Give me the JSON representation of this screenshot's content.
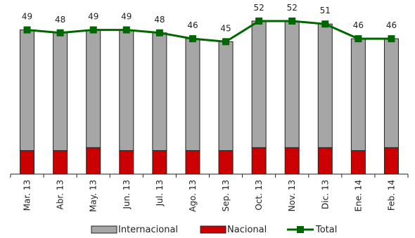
{
  "chart_data": {
    "type": "bar",
    "stacked": true,
    "categories": [
      "Mar. 13",
      "Abr. 13",
      "May. 13",
      "Jun. 13",
      "Jul. 13",
      "Ago. 13",
      "Sep. 13",
      "Oct. 13",
      "Nov. 13",
      "Dic. 13",
      "Ene. 14",
      "Feb. 14"
    ],
    "series": [
      {
        "name": "Nacional",
        "type": "bar",
        "color": "#cc0000",
        "values": [
          8,
          8,
          9,
          8,
          8,
          8,
          8,
          9,
          9,
          9,
          8,
          9
        ]
      },
      {
        "name": "Internacional",
        "type": "bar",
        "color": "#a6a6a6",
        "values": [
          41,
          40,
          40,
          41,
          40,
          38,
          37,
          43,
          43,
          42,
          38,
          37
        ]
      },
      {
        "name": "Total",
        "type": "line",
        "color": "#006600",
        "values": [
          49,
          48,
          49,
          49,
          48,
          46,
          45,
          52,
          52,
          51,
          46,
          46
        ]
      }
    ],
    "data_labels": [
      "49",
      "48",
      "49",
      "49",
      "48",
      "46",
      "45",
      "52",
      "52",
      "51",
      "46",
      "46"
    ],
    "ylim": [
      0,
      52
    ],
    "grid": false,
    "legend_position": "bottom",
    "legend": [
      "Internacional",
      "Nacional",
      "Total"
    ]
  }
}
